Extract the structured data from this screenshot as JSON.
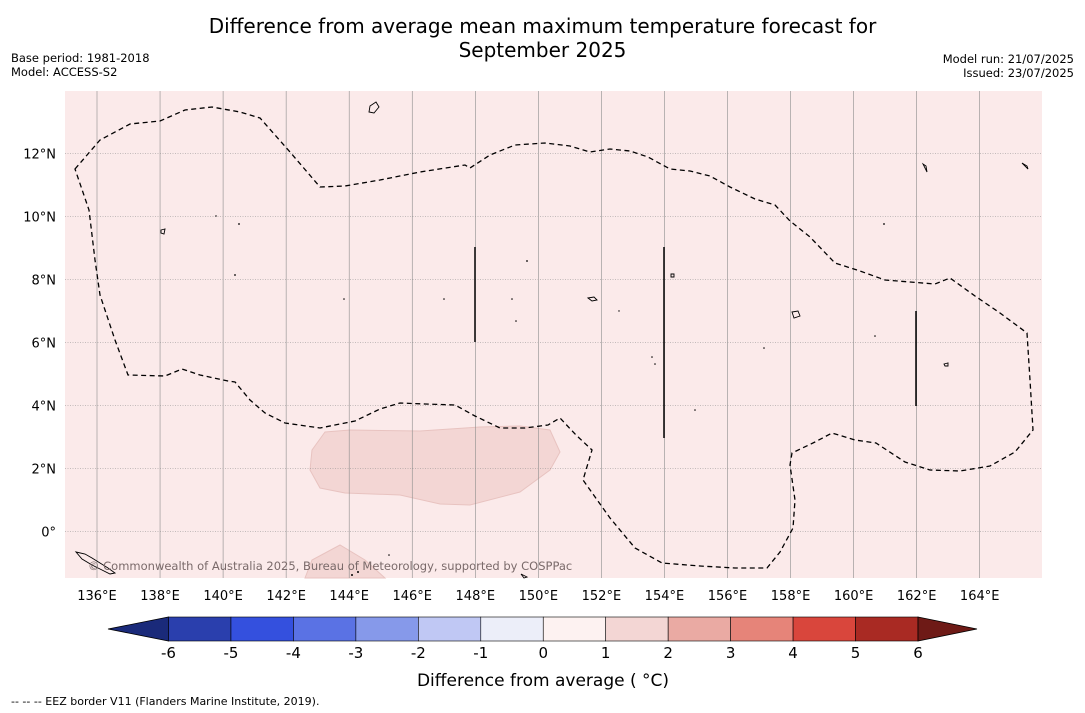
{
  "title_line1": "Difference from average mean maximum temperature forecast for",
  "title_line2": "September 2025",
  "meta_left": {
    "base_period": "Base period: 1981-2018",
    "model": "Model: ACCESS-S2"
  },
  "meta_right": {
    "model_run": "Model run: 21/07/2025",
    "issued": "Issued: 23/07/2025"
  },
  "map": {
    "lon_ticks": [
      "136°E",
      "138°E",
      "140°E",
      "142°E",
      "144°E",
      "146°E",
      "148°E",
      "150°E",
      "152°E",
      "154°E",
      "156°E",
      "158°E",
      "160°E",
      "162°E",
      "164°E"
    ],
    "lat_ticks": [
      "12°N",
      "10°N",
      "8°N",
      "6°N",
      "4°N",
      "2°N",
      "0°"
    ],
    "copyright": "© Commonwealth of Australia 2025, Bureau of Meteorology, supported by COSPPac",
    "colors": {
      "background": "#fbeaea",
      "warm_patch": "#f3d6d4"
    }
  },
  "colorbar": {
    "label": "Difference from average ( °C)",
    "ticks": [
      "-6",
      "-5",
      "-4",
      "-3",
      "-2",
      "-1",
      "0",
      "1",
      "2",
      "3",
      "4",
      "5",
      "6"
    ],
    "colors": [
      "#1a2a7a",
      "#2a3fad",
      "#3450de",
      "#5a72e4",
      "#8699ea",
      "#c0c8f4",
      "#eceef9",
      "#fdf2f1",
      "#f3d6d4",
      "#eaaaa3",
      "#e68479",
      "#d9463c",
      "#a92a23",
      "#6e1a16"
    ]
  },
  "footnote": "--  --  -- EEZ border V11 (Flanders Marine Institute, 2019)."
}
